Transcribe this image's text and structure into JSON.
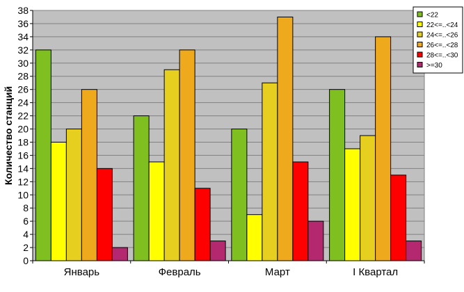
{
  "chart_data": {
    "type": "bar",
    "ylabel": "Количество станций",
    "xlabel": "",
    "ylim": [
      0,
      38
    ],
    "ytick_step": 2,
    "grid": true,
    "legend_position": "top-right",
    "categories": [
      "Январь",
      "Февраль",
      "Март",
      "I Квартал"
    ],
    "series": [
      {
        "name": "<22",
        "color": "#7fbf1f",
        "values": [
          32,
          22,
          20,
          26
        ]
      },
      {
        "name": "22<=..<24",
        "color": "#ffff00",
        "values": [
          18,
          15,
          7,
          17
        ]
      },
      {
        "name": "24<=..<26",
        "color": "#e6cf1f",
        "values": [
          20,
          29,
          27,
          19
        ]
      },
      {
        "name": "26<=..<28",
        "color": "#efa91c",
        "values": [
          26,
          32,
          37,
          34
        ]
      },
      {
        "name": "28<=..<30",
        "color": "#ff0000",
        "values": [
          14,
          11,
          15,
          13
        ]
      },
      {
        "name": ">=30",
        "color": "#b3286e",
        "values": [
          2,
          3,
          6,
          3
        ]
      }
    ],
    "plot_background": "#c0c0c0"
  }
}
